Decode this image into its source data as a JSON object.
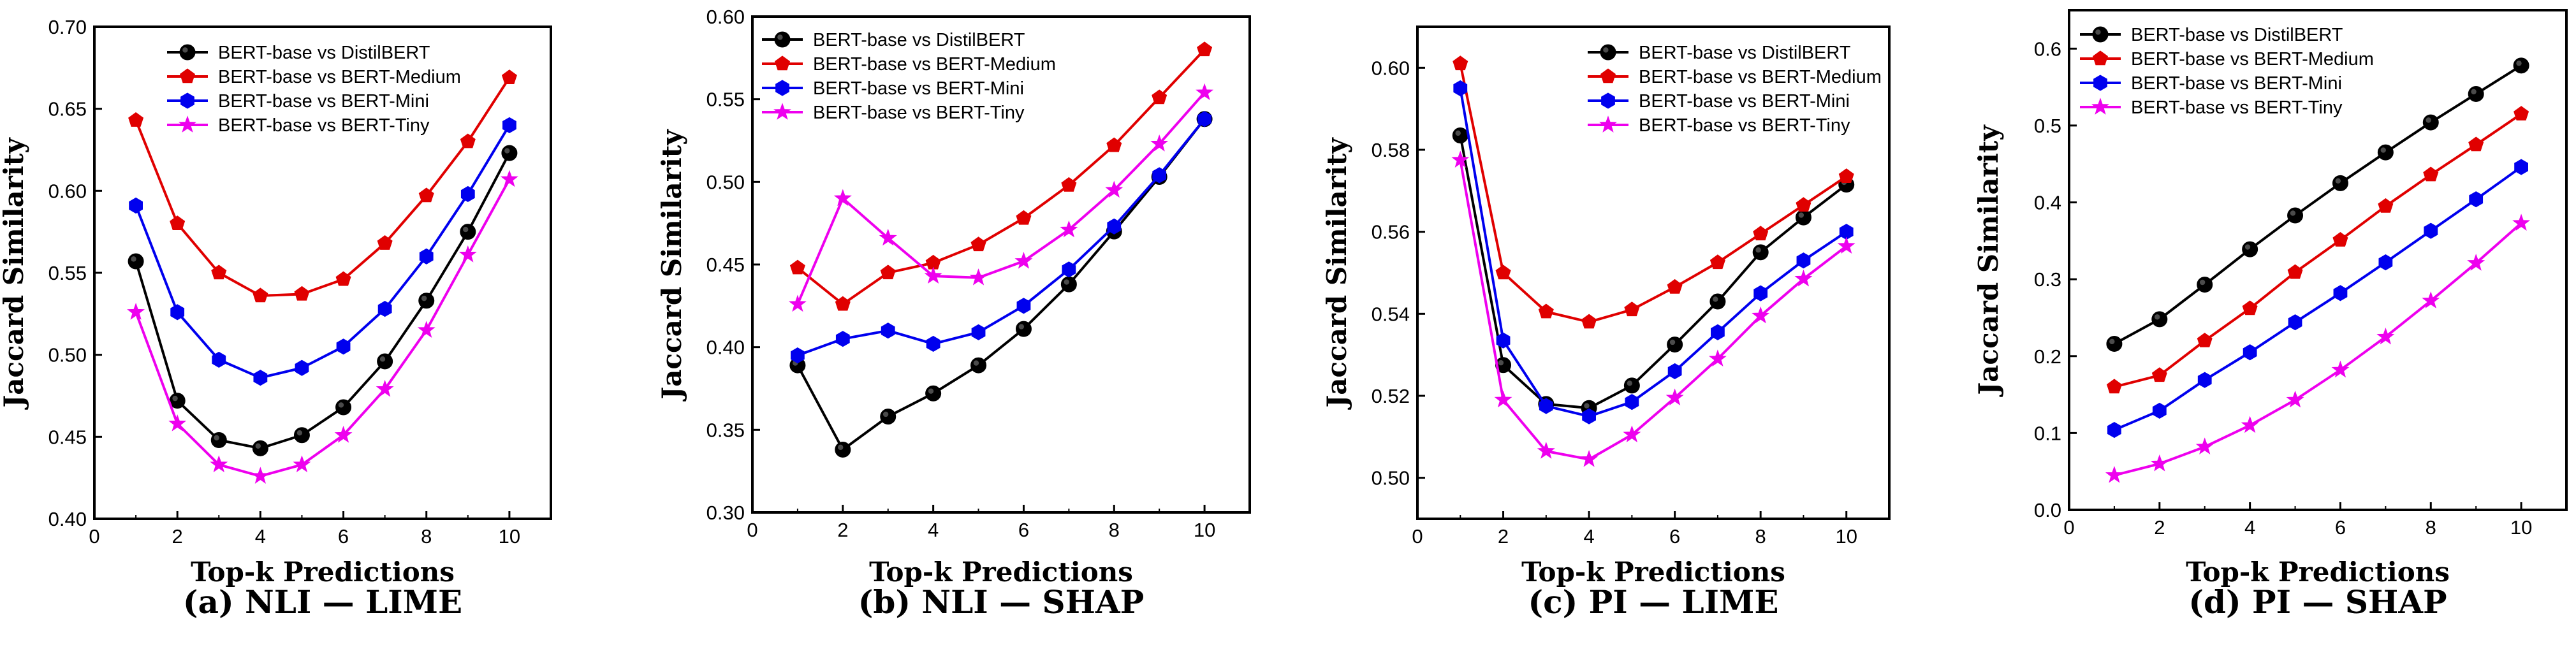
{
  "series_styles": [
    {
      "color": "#000000",
      "marker": "circle"
    },
    {
      "color": "#e00000",
      "marker": "pentagon"
    },
    {
      "color": "#0000ee",
      "marker": "hexagon"
    },
    {
      "color": "#ee00ee",
      "marker": "star"
    }
  ],
  "chart_data": [
    {
      "type": "line",
      "caption": "(a) NLI — LIME",
      "xlabel": "Top-k Predictions",
      "ylabel": "Jaccard Similarity",
      "xlim": [
        0,
        11
      ],
      "ylim": [
        0.4,
        0.7
      ],
      "xticks": [
        0,
        2,
        4,
        6,
        8,
        10
      ],
      "xtick_labels": [
        "0",
        "2",
        "4",
        "6",
        "8",
        "10"
      ],
      "yticks": [
        0.4,
        0.45,
        0.5,
        0.55,
        0.6,
        0.65,
        0.7
      ],
      "ytick_labels": [
        "0.40",
        "0.45",
        "0.50",
        "0.55",
        "0.60",
        "0.65",
        "0.70"
      ],
      "legend_position": "top-center",
      "x": [
        1,
        2,
        3,
        4,
        5,
        6,
        7,
        8,
        9,
        10
      ],
      "series": [
        {
          "name": "BERT-base vs DistilBERT",
          "values": [
            0.557,
            0.472,
            0.448,
            0.443,
            0.451,
            0.468,
            0.496,
            0.533,
            0.575,
            0.623
          ]
        },
        {
          "name": "BERT-base vs BERT-Medium",
          "values": [
            0.643,
            0.58,
            0.55,
            0.536,
            0.537,
            0.546,
            0.568,
            0.597,
            0.63,
            0.669
          ]
        },
        {
          "name": "BERT-base vs BERT-Mini",
          "values": [
            0.591,
            0.526,
            0.497,
            0.486,
            0.492,
            0.505,
            0.528,
            0.56,
            0.598,
            0.64
          ]
        },
        {
          "name": "BERT-base vs BERT-Tiny",
          "values": [
            0.526,
            0.458,
            0.433,
            0.426,
            0.433,
            0.451,
            0.479,
            0.515,
            0.561,
            0.607
          ]
        }
      ]
    },
    {
      "type": "line",
      "caption": "(b) NLI — SHAP",
      "xlabel": "Top-k Predictions",
      "ylabel": "Jaccard Similarity",
      "xlim": [
        0,
        11
      ],
      "ylim": [
        0.3,
        0.6
      ],
      "xticks": [
        0,
        2,
        4,
        6,
        8,
        10
      ],
      "xtick_labels": [
        "0",
        "2",
        "4",
        "6",
        "8",
        "10"
      ],
      "yticks": [
        0.3,
        0.35,
        0.4,
        0.45,
        0.5,
        0.55,
        0.6
      ],
      "ytick_labels": [
        "0.30",
        "0.35",
        "0.40",
        "0.45",
        "0.50",
        "0.55",
        "0.60"
      ],
      "legend_position": "top-left",
      "x": [
        1,
        2,
        3,
        4,
        5,
        6,
        7,
        8,
        9,
        10
      ],
      "series": [
        {
          "name": "BERT-base vs DistilBERT",
          "values": [
            0.389,
            0.338,
            0.358,
            0.372,
            0.389,
            0.411,
            0.438,
            0.47,
            0.503,
            0.538
          ]
        },
        {
          "name": "BERT-base vs BERT-Medium",
          "values": [
            0.448,
            0.426,
            0.445,
            0.451,
            0.462,
            0.478,
            0.498,
            0.522,
            0.551,
            0.58
          ]
        },
        {
          "name": "BERT-base vs BERT-Mini",
          "values": [
            0.395,
            0.405,
            0.41,
            0.402,
            0.409,
            0.425,
            0.447,
            0.473,
            0.504,
            0.538
          ]
        },
        {
          "name": "BERT-base vs BERT-Tiny",
          "values": [
            0.426,
            0.49,
            0.466,
            0.443,
            0.442,
            0.452,
            0.471,
            0.495,
            0.523,
            0.554
          ]
        }
      ]
    },
    {
      "type": "line",
      "caption": "(c) PI — LIME",
      "xlabel": "Top-k Predictions",
      "ylabel": "Jaccard Similarity",
      "xlim": [
        0,
        11
      ],
      "ylim": [
        0.49,
        0.61
      ],
      "xticks": [
        0,
        2,
        4,
        6,
        8,
        10
      ],
      "xtick_labels": [
        "0",
        "2",
        "4",
        "6",
        "8",
        "10"
      ],
      "yticks": [
        0.5,
        0.52,
        0.54,
        0.56,
        0.58,
        0.6
      ],
      "ytick_labels": [
        "0.50",
        "0.52",
        "0.54",
        "0.56",
        "0.58",
        "0.60"
      ],
      "legend_position": "top-right",
      "x": [
        1,
        2,
        3,
        4,
        5,
        6,
        7,
        8,
        9,
        10
      ],
      "series": [
        {
          "name": "BERT-base vs DistilBERT",
          "values": [
            0.5835,
            0.5275,
            0.518,
            0.517,
            0.5225,
            0.5325,
            0.543,
            0.555,
            0.5635,
            0.5715
          ]
        },
        {
          "name": "BERT-base vs BERT-Medium",
          "values": [
            0.601,
            0.55,
            0.5405,
            0.538,
            0.541,
            0.5465,
            0.5525,
            0.5595,
            0.5665,
            0.5735
          ]
        },
        {
          "name": "BERT-base vs BERT-Mini",
          "values": [
            0.595,
            0.5335,
            0.5175,
            0.515,
            0.5185,
            0.526,
            0.5355,
            0.545,
            0.553,
            0.56
          ]
        },
        {
          "name": "BERT-base vs BERT-Tiny",
          "values": [
            0.5775,
            0.519,
            0.5065,
            0.5045,
            0.5105,
            0.5195,
            0.529,
            0.5395,
            0.5485,
            0.5565
          ]
        }
      ]
    },
    {
      "type": "line",
      "caption": "(d) PI — SHAP",
      "xlabel": "Top-k Predictions",
      "ylabel": "Jaccard Similarity",
      "xlim": [
        0,
        11
      ],
      "ylim": [
        0.0,
        0.65
      ],
      "xticks": [
        0,
        2,
        4,
        6,
        8,
        10
      ],
      "xtick_labels": [
        "0",
        "2",
        "4",
        "6",
        "8",
        "10"
      ],
      "yticks": [
        0.0,
        0.1,
        0.2,
        0.3,
        0.4,
        0.5,
        0.6
      ],
      "ytick_labels": [
        "0.0",
        "0.1",
        "0.2",
        "0.3",
        "0.4",
        "0.5",
        "0.6"
      ],
      "legend_position": "top-left",
      "x": [
        1,
        2,
        3,
        4,
        5,
        6,
        7,
        8,
        9,
        10
      ],
      "series": [
        {
          "name": "BERT-base vs DistilBERT",
          "values": [
            0.216,
            0.248,
            0.293,
            0.339,
            0.383,
            0.425,
            0.465,
            0.504,
            0.541,
            0.578
          ]
        },
        {
          "name": "BERT-base vs BERT-Medium",
          "values": [
            0.16,
            0.175,
            0.22,
            0.262,
            0.309,
            0.351,
            0.395,
            0.436,
            0.475,
            0.515
          ]
        },
        {
          "name": "BERT-base vs BERT-Mini",
          "values": [
            0.104,
            0.129,
            0.169,
            0.205,
            0.244,
            0.282,
            0.322,
            0.363,
            0.404,
            0.446
          ]
        },
        {
          "name": "BERT-base vs BERT-Tiny",
          "values": [
            0.045,
            0.06,
            0.082,
            0.11,
            0.143,
            0.182,
            0.225,
            0.272,
            0.321,
            0.373
          ]
        }
      ]
    }
  ]
}
